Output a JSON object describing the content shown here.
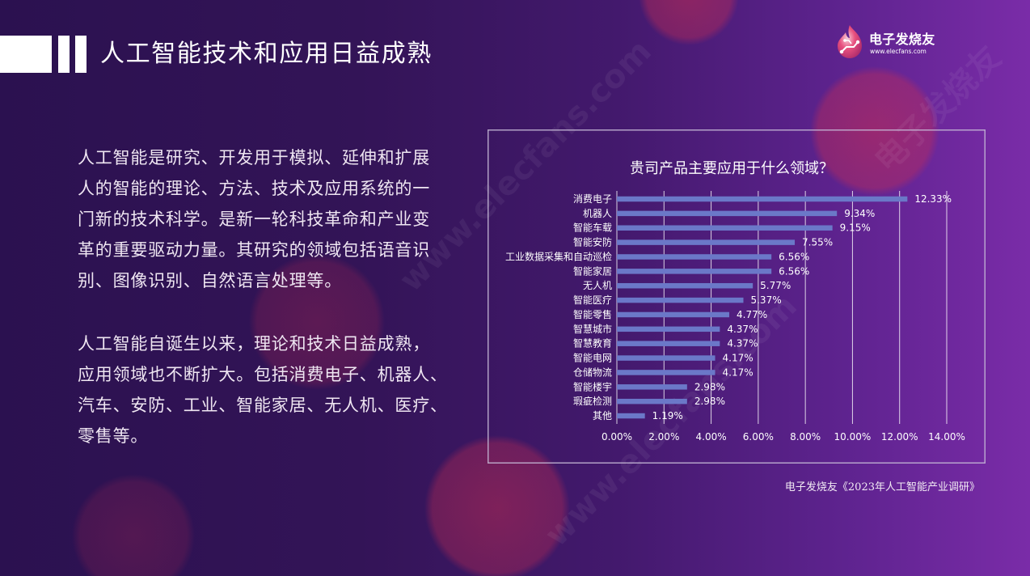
{
  "header": {
    "title": "人工智能技术和应用日益成熟"
  },
  "logo": {
    "name": "电子发烧友",
    "url": "www.elecfans.com",
    "icon": "elecfans-flame-icon"
  },
  "intro": {
    "paragraphs": [
      [
        "人工智能是研究、开发用于模拟、延伸和扩展",
        "人的智能的理论、方法、技术及应用系统的一",
        "门新的技术科学。是新一轮科技革命和产业变",
        "革的重要驱动力量。其研究的领域包括语音识",
        "别、图像识别、自然语言处理等。"
      ],
      [
        "人工智能自诞生以来，理论和技术日益成熟，",
        "应用领域也不断扩大。包括消费电子、机器人、",
        "汽车、安防、工业、智能家居、无人机、医疗、",
        "零售等。"
      ]
    ]
  },
  "chart_data": {
    "type": "bar",
    "orientation": "horizontal",
    "title": "贵司产品主要应用于什么领域？",
    "categories": [
      "消费电子",
      "机器人",
      "智能车载",
      "智能安防",
      "工业数据采集和自动巡检",
      "智能家居",
      "无人机",
      "智能医疗",
      "智能零售",
      "智慧城市",
      "智慧教育",
      "智能电网",
      "仓储物流",
      "智能楼宇",
      "瑕疵检测",
      "其他"
    ],
    "values": [
      12.33,
      9.34,
      9.15,
      7.55,
      6.56,
      6.56,
      5.77,
      5.37,
      4.77,
      4.37,
      4.37,
      4.17,
      4.17,
      2.98,
      2.98,
      1.19
    ],
    "data_labels": [
      "12.33%",
      "9.34%",
      "9.15%",
      "7.55%",
      "6.56%",
      "6.56%",
      "5.77%",
      "5.37%",
      "4.77%",
      "4.37%",
      "4.37%",
      "4.17%",
      "4.17%",
      "2.98%",
      "2.98%",
      "1.19%"
    ],
    "xlim": [
      0,
      14
    ],
    "xticks": [
      0,
      2,
      4,
      6,
      8,
      10,
      12,
      14
    ],
    "xtick_labels": [
      "0.00%",
      "2.00%",
      "4.00%",
      "6.00%",
      "8.00%",
      "10.00%",
      "12.00%",
      "14.00%"
    ],
    "grid": "vertical",
    "legend": "none",
    "bar_color": "#6b78c8"
  },
  "source": "电子发烧友《2023年人工智能产业调研》",
  "watermark": {
    "url": "www.elecfans.com",
    "brand": "电子发烧友"
  },
  "colors": {
    "background_left": "#2b1150",
    "background_right": "#7a2ca8",
    "accent_red": "#cd2d50",
    "text": "#efe6f2"
  }
}
